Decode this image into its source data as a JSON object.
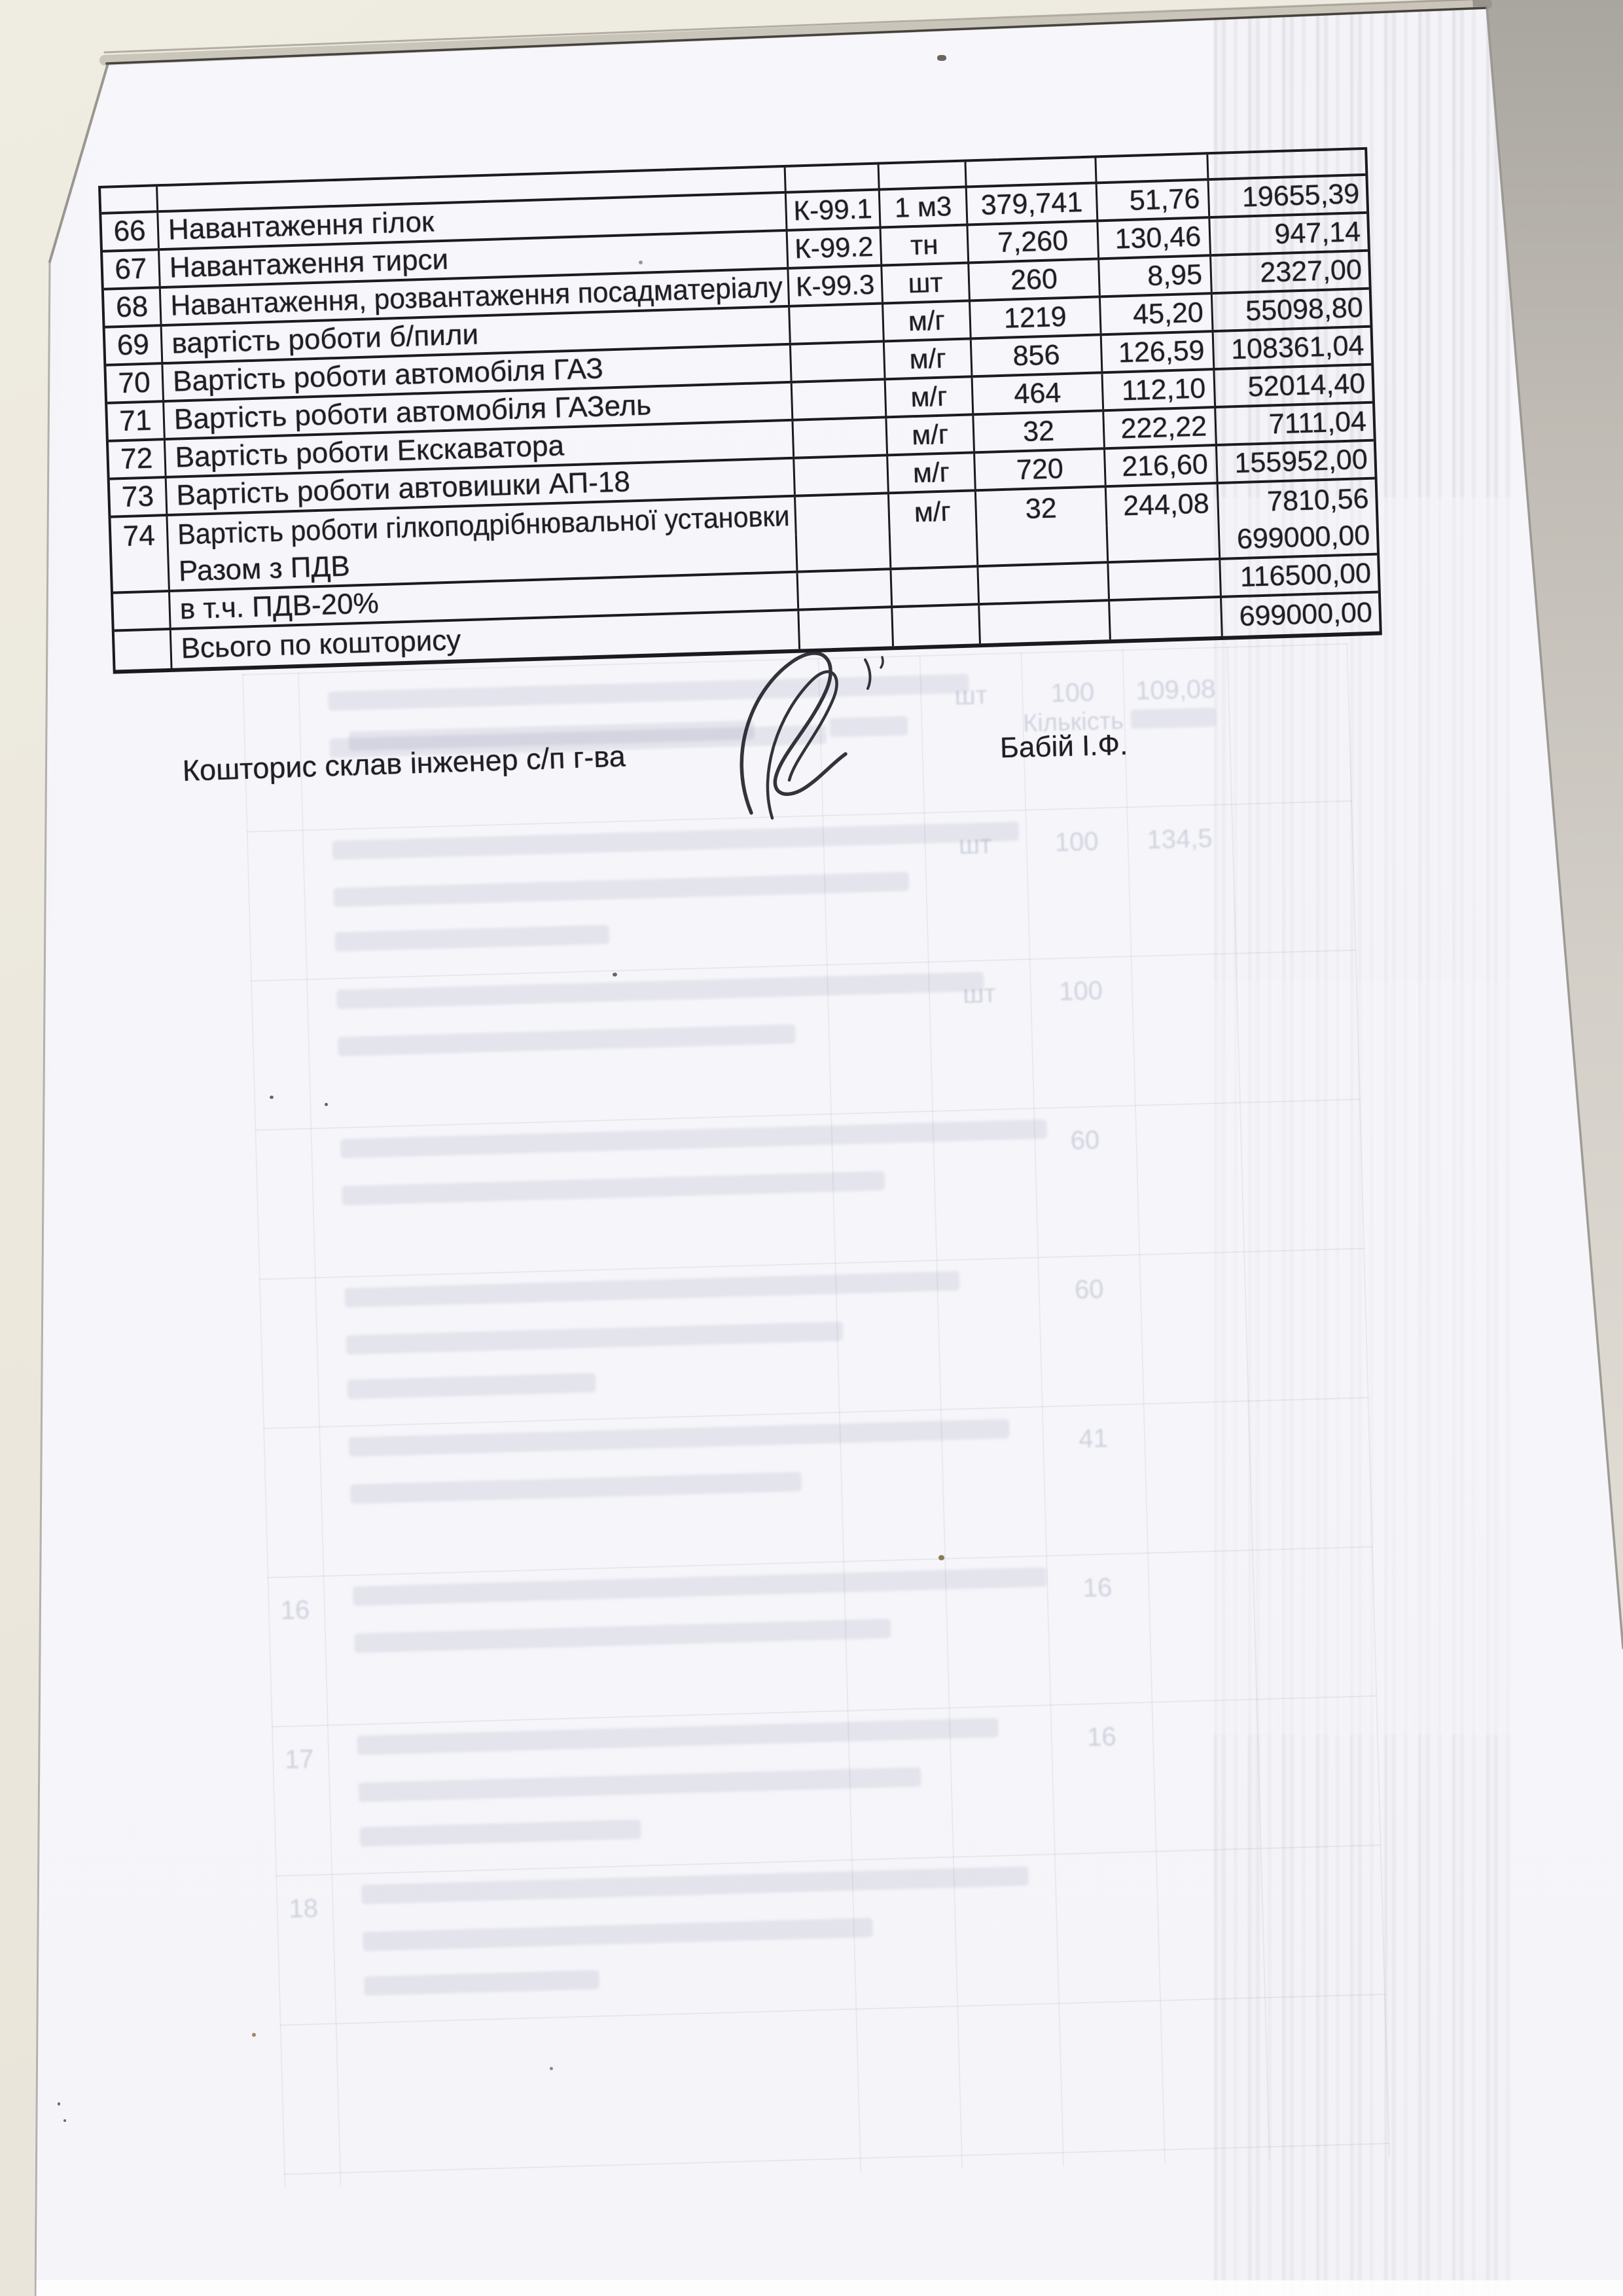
{
  "content": {
    "table": {
      "rows": [
        {
          "num": "66",
          "desc": "Навантаження гілок",
          "code": "К-99.1",
          "unit": "1 м3",
          "qty": "379,741",
          "price": "51,76",
          "sum": "19655,39"
        },
        {
          "num": "67",
          "desc": "Навантаження тирси",
          "code": "К-99.2",
          "unit": "тн",
          "qty": "7,260",
          "price": "130,46",
          "sum": "947,14"
        },
        {
          "num": "68",
          "desc": "Навантаження, розвантаження посадматеріалу",
          "code": "К-99.3",
          "unit": "шт",
          "qty": "260",
          "price": "8,95",
          "sum": "2327,00"
        },
        {
          "num": "69",
          "desc": "вартість роботи б/пили",
          "code": "",
          "unit": "м/г",
          "qty": "1219",
          "price": "45,20",
          "sum": "55098,80"
        },
        {
          "num": "70",
          "desc": "Вартість роботи автомобіля ГАЗ",
          "code": "",
          "unit": "м/г",
          "qty": "856",
          "price": "126,59",
          "sum": "108361,04"
        },
        {
          "num": "71",
          "desc": "Вартість роботи автомобіля ГАЗель",
          "code": "",
          "unit": "м/г",
          "qty": "464",
          "price": "112,10",
          "sum": "52014,40"
        },
        {
          "num": "72",
          "desc": "Вартість роботи Екскаватора",
          "code": "",
          "unit": "м/г",
          "qty": "32",
          "price": "222,22",
          "sum": "7111,04"
        },
        {
          "num": "73",
          "desc": "Вартість роботи автовишки АП-18",
          "code": "",
          "unit": "м/г",
          "qty": "720",
          "price": "216,60",
          "sum": "155952,00"
        },
        {
          "num": "74",
          "desc": "Вартість роботи гілкоподрібнювальної установки",
          "code": "",
          "unit": "м/г",
          "qty": "32",
          "price": "244,08",
          "sum": "7810,56"
        }
      ],
      "summary": [
        {
          "label": "Разом з ПДВ",
          "sum": "699000,00"
        },
        {
          "label": "в т.ч. ПДВ-20%",
          "sum": "116500,00"
        },
        {
          "label": "Всього по кошторису",
          "sum": "699000,00"
        }
      ]
    },
    "footer": {
      "prepared_by_label": "Кошторис склав інженер с/п г-ва",
      "signatory": "Бабій І.Ф."
    },
    "ghost": {
      "header_fragment": "Кількість",
      "rows": [
        {
          "num": "",
          "b1": 980,
          "b2": 760,
          "b3": 0,
          "unit": "шт",
          "qty": "100",
          "amt": "109,08"
        },
        {
          "num": "",
          "b1": 1050,
          "b2": 880,
          "b3": 420,
          "unit": "шт",
          "qty": "100",
          "amt": "134,5"
        },
        {
          "num": "",
          "b1": 990,
          "b2": 700,
          "b3": 0,
          "unit": "шт",
          "qty": "100",
          "amt": ""
        },
        {
          "num": "",
          "b1": 1080,
          "b2": 830,
          "b3": 0,
          "unit": "",
          "qty": "60",
          "amt": ""
        },
        {
          "num": "",
          "b1": 940,
          "b2": 760,
          "b3": 380,
          "unit": "",
          "qty": "60",
          "amt": ""
        },
        {
          "num": "",
          "b1": 1010,
          "b2": 690,
          "b3": 0,
          "unit": "",
          "qty": "41",
          "amt": ""
        },
        {
          "num": "16",
          "b1": 1060,
          "b2": 820,
          "b3": 0,
          "unit": "",
          "qty": "16",
          "amt": ""
        },
        {
          "num": "17",
          "b1": 980,
          "b2": 860,
          "b3": 430,
          "unit": "",
          "qty": "16",
          "amt": ""
        },
        {
          "num": "18",
          "b1": 1020,
          "b2": 780,
          "b3": 360,
          "unit": "",
          "qty": "",
          "amt": ""
        }
      ]
    },
    "colors": {
      "paper": "#f8f8fb",
      "scanner_bg": "#ece8dd",
      "scanner_bg_dark": "#a9a59f",
      "ink": "#1e1e24",
      "table_line": "#1a1a20",
      "ghost_ink": "#6a76a8",
      "streak": "#85858f"
    }
  }
}
